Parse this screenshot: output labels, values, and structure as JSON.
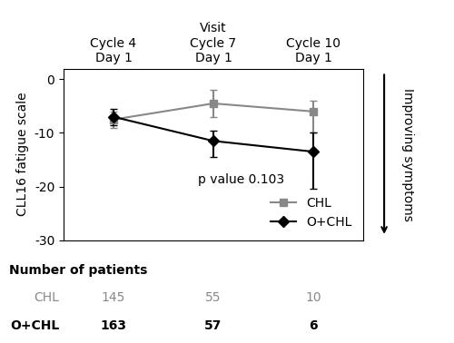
{
  "chart_data": {
    "type": "line",
    "categories": [
      "Cycle 4\nDay 1",
      "Visit\nCycle 7\nDay 1",
      "Cycle 10\nDay 1"
    ],
    "series": [
      {
        "name": "CHL",
        "color": "#888888",
        "marker": "square",
        "values": [
          -7.5,
          -4.5,
          -6.0
        ],
        "error_low": [
          1.5,
          2.5,
          4.0
        ],
        "error_high": [
          1.5,
          2.5,
          2.0
        ],
        "patient_counts": [
          145,
          55,
          10
        ]
      },
      {
        "name": "O+CHL",
        "color": "#000000",
        "marker": "diamond",
        "values": [
          -7.0,
          -11.5,
          -13.5
        ],
        "error_low": [
          1.5,
          3.0,
          7.0
        ],
        "error_high": [
          1.5,
          2.0,
          3.5
        ],
        "patient_counts": [
          163,
          57,
          6
        ]
      }
    ],
    "y_label": "CLL16 fatigue scale",
    "ylim": [
      -30,
      2
    ],
    "yticks": [
      0,
      -10,
      -20,
      -30
    ],
    "annotations": [
      "p value 0.103",
      "Improving symptoms"
    ],
    "table_title": "Number of patients",
    "legend": "lower right",
    "grid": false
  }
}
